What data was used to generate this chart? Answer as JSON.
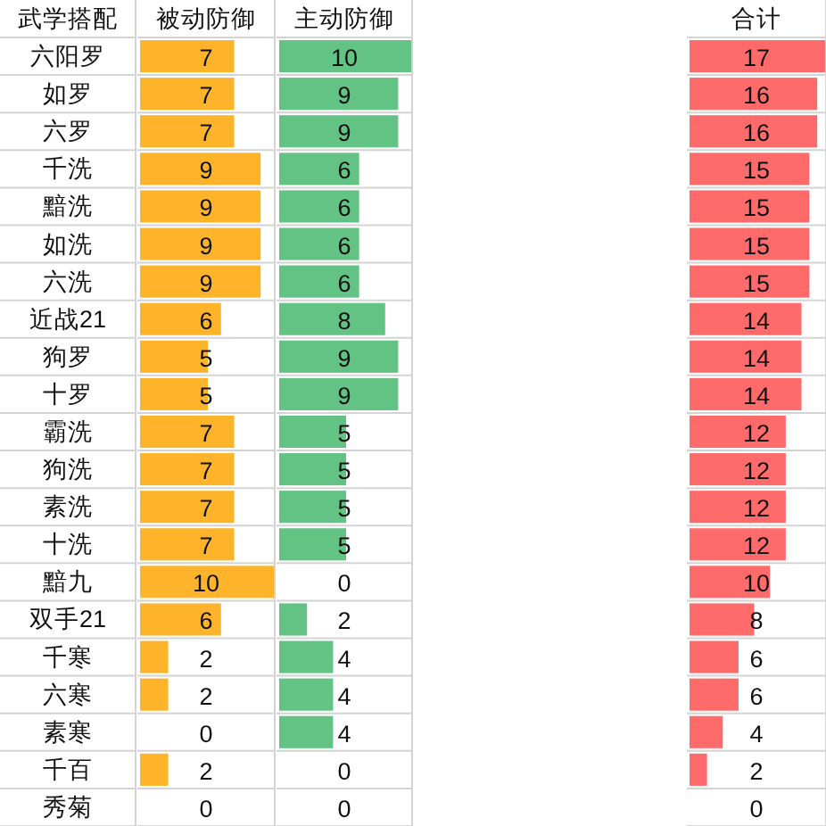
{
  "chart_data": [
    {
      "type": "bar",
      "orientation": "horizontal",
      "title": "被动防御",
      "ylabel": "武学搭配",
      "categories": [
        "六阳罗",
        "如罗",
        "六罗",
        "千洗",
        "黯洗",
        "如洗",
        "六洗",
        "近战21",
        "狗罗",
        "十罗",
        "霸洗",
        "狗洗",
        "素洗",
        "十洗",
        "黯九",
        "双手21",
        "千寒",
        "六寒",
        "素寒",
        "千百",
        "秀菊"
      ],
      "values": [
        7,
        7,
        7,
        9,
        9,
        9,
        9,
        6,
        5,
        5,
        7,
        7,
        7,
        7,
        10,
        6,
        2,
        2,
        0,
        2,
        0
      ],
      "color": "#fdb42a",
      "data_labels": true,
      "tick_labels": "y",
      "grid": true
    },
    {
      "type": "bar",
      "orientation": "horizontal",
      "title": "主动防御",
      "categories": [
        null,
        null,
        null,
        null,
        null,
        null,
        null,
        null,
        null,
        null,
        null,
        null,
        null,
        null,
        null,
        null,
        null,
        null,
        null,
        null,
        null
      ],
      "values": [
        10,
        9,
        9,
        6,
        6,
        6,
        6,
        8,
        9,
        9,
        5,
        5,
        5,
        5,
        0,
        2,
        4,
        4,
        4,
        0,
        0
      ],
      "color": "#63c384",
      "data_labels": true,
      "tick_labels": false,
      "grid": true
    },
    {
      "type": "bar",
      "orientation": "horizontal",
      "title": "合计",
      "categories": [
        null,
        null,
        null,
        null,
        null,
        null,
        null,
        null,
        null,
        null,
        null,
        null,
        null,
        null,
        null,
        null,
        null,
        null,
        null,
        null,
        null
      ],
      "values": [
        17,
        16,
        16,
        15,
        15,
        15,
        15,
        14,
        14,
        14,
        12,
        12,
        12,
        12,
        10,
        8,
        6,
        6,
        4,
        2,
        0
      ],
      "color": "#ff6b6b",
      "data_labels": true,
      "tick_labels": false,
      "grid": true
    }
  ]
}
